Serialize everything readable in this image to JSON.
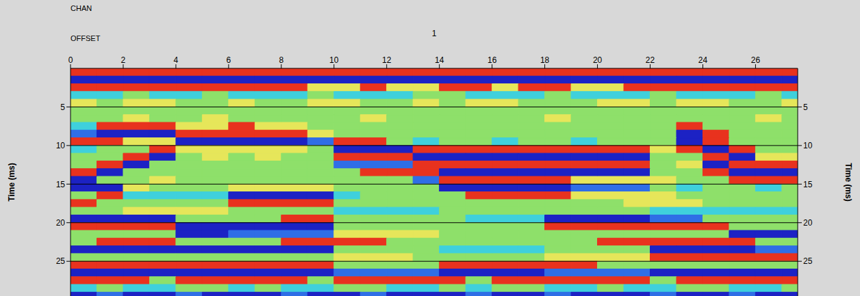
{
  "chart_data": {
    "type": "heatmap",
    "chan_label": "CHAN",
    "chan_value": 1,
    "x_label": "OFFSET",
    "y_label": "Time (ms)",
    "xlim": [
      0,
      27.6
    ],
    "ylim": [
      0,
      29.5
    ],
    "xticks": [
      0,
      2,
      4,
      6,
      8,
      10,
      12,
      14,
      16,
      18,
      20,
      22,
      24,
      26
    ],
    "yticks": [
      5,
      10,
      15,
      20,
      25
    ],
    "grid": true,
    "x_edges": [
      0,
      1,
      2,
      3,
      4,
      5,
      6,
      7,
      8,
      9,
      10,
      11,
      12,
      13,
      14,
      15,
      16,
      17,
      18,
      19,
      20,
      21,
      22,
      23,
      24,
      25,
      26,
      27,
      28
    ],
    "y_edges": [
      0,
      1,
      2,
      3,
      4,
      5,
      6,
      7,
      8,
      9,
      10,
      11,
      12,
      13,
      14,
      15,
      16,
      17,
      18,
      19,
      20,
      21,
      22,
      23,
      24,
      25,
      26,
      27,
      28,
      29,
      30
    ],
    "cells": [
      [
        2,
        2,
        2,
        2,
        2,
        2,
        2,
        2,
        2,
        2,
        2,
        2,
        2,
        2,
        2,
        2,
        2,
        2,
        2,
        2,
        2,
        2,
        2,
        2,
        2,
        2,
        2,
        2
      ],
      [
        -3,
        -3,
        -3,
        -3,
        -3,
        -3,
        -3,
        -3,
        -3,
        -3,
        -3,
        -3,
        -3,
        -3,
        -3,
        -3,
        -3,
        -3,
        -3,
        -3,
        -3,
        -3,
        -3,
        -3,
        -3,
        -3,
        -3,
        -3
      ],
      [
        2,
        2,
        2,
        2,
        2,
        2,
        2,
        2,
        2,
        1,
        1,
        2,
        1,
        1,
        2,
        2,
        1,
        2,
        2,
        1,
        1,
        2,
        2,
        2,
        2,
        2,
        2,
        2
      ],
      [
        -1,
        -1,
        0,
        -1,
        -1,
        0,
        -1,
        -1,
        -1,
        0,
        -1,
        -1,
        -1,
        0,
        0,
        -1,
        -1,
        -1,
        0,
        -1,
        -1,
        -1,
        0,
        -1,
        -1,
        -1,
        0,
        -1
      ],
      [
        1,
        0,
        1,
        1,
        0,
        0,
        1,
        0,
        0,
        1,
        1,
        0,
        0,
        1,
        0,
        1,
        1,
        0,
        0,
        0,
        1,
        1,
        0,
        1,
        1,
        0,
        0,
        1
      ],
      [
        0,
        0,
        0,
        0,
        0,
        0,
        0,
        0,
        0,
        0,
        0,
        0,
        0,
        0,
        0,
        0,
        0,
        0,
        0,
        0,
        0,
        0,
        0,
        0,
        0,
        0,
        0,
        0
      ],
      [
        0,
        0,
        1,
        0,
        0,
        1,
        0,
        0,
        0,
        0,
        0,
        1,
        0,
        0,
        0,
        0,
        0,
        0,
        1,
        0,
        0,
        0,
        0,
        0,
        0,
        0,
        1,
        0
      ],
      [
        -1,
        2,
        2,
        2,
        1,
        1,
        2,
        1,
        1,
        0,
        0,
        0,
        0,
        0,
        0,
        0,
        0,
        0,
        0,
        0,
        0,
        0,
        0,
        2,
        0,
        0,
        0,
        0
      ],
      [
        -2,
        -3,
        -3,
        -3,
        2,
        2,
        2,
        2,
        2,
        1,
        0,
        0,
        0,
        0,
        0,
        0,
        0,
        0,
        0,
        0,
        0,
        0,
        0,
        -3,
        2,
        0,
        0,
        0
      ],
      [
        2,
        2,
        1,
        1,
        -3,
        -3,
        -3,
        -3,
        -3,
        -2,
        2,
        2,
        0,
        -1,
        0,
        0,
        -1,
        0,
        0,
        -1,
        0,
        0,
        0,
        -3,
        2,
        0,
        0,
        0
      ],
      [
        -1,
        0,
        0,
        2,
        1,
        1,
        1,
        1,
        1,
        0,
        -3,
        -3,
        -3,
        2,
        2,
        2,
        2,
        2,
        2,
        2,
        2,
        2,
        1,
        2,
        -3,
        2,
        0,
        0
      ],
      [
        0,
        0,
        2,
        -3,
        0,
        1,
        0,
        1,
        0,
        0,
        2,
        2,
        2,
        -3,
        -3,
        -3,
        -3,
        -3,
        -3,
        -3,
        -3,
        -3,
        0,
        0,
        2,
        -3,
        1,
        1
      ],
      [
        0,
        2,
        -3,
        0,
        0,
        0,
        0,
        0,
        0,
        0,
        -2,
        -2,
        -2,
        2,
        2,
        2,
        2,
        2,
        2,
        2,
        2,
        2,
        0,
        1,
        -3,
        2,
        2,
        2
      ],
      [
        2,
        -3,
        0,
        0,
        0,
        0,
        0,
        0,
        0,
        0,
        0,
        2,
        2,
        2,
        -3,
        -3,
        -3,
        -3,
        -3,
        -3,
        -3,
        -3,
        0,
        0,
        2,
        -3,
        -3,
        -3
      ],
      [
        -3,
        0,
        0,
        1,
        0,
        0,
        0,
        0,
        0,
        0,
        0,
        0,
        0,
        -2,
        2,
        2,
        2,
        2,
        2,
        1,
        1,
        1,
        1,
        0,
        0,
        2,
        2,
        2
      ],
      [
        -3,
        -3,
        1,
        0,
        0,
        0,
        1,
        1,
        1,
        1,
        0,
        0,
        0,
        0,
        -3,
        -3,
        -3,
        -3,
        -3,
        -2,
        -2,
        -2,
        0,
        -1,
        0,
        0,
        -1,
        0
      ],
      [
        0,
        2,
        -1,
        -1,
        -1,
        -1,
        -3,
        -3,
        -3,
        -3,
        -1,
        0,
        0,
        0,
        0,
        2,
        2,
        2,
        2,
        1,
        1,
        1,
        1,
        0,
        0,
        0,
        0,
        0
      ],
      [
        2,
        0,
        0,
        0,
        0,
        0,
        2,
        2,
        2,
        2,
        0,
        0,
        0,
        0,
        0,
        0,
        0,
        0,
        0,
        0,
        0,
        1,
        1,
        1,
        0,
        0,
        0,
        0
      ],
      [
        0,
        0,
        1,
        1,
        1,
        1,
        0,
        0,
        0,
        0,
        -1,
        -1,
        -1,
        -1,
        0,
        0,
        0,
        0,
        0,
        0,
        0,
        0,
        -1,
        -1,
        -1,
        -1,
        -1,
        -1
      ],
      [
        -3,
        -3,
        -3,
        -3,
        0,
        0,
        0,
        0,
        2,
        2,
        0,
        0,
        0,
        0,
        0,
        -1,
        -1,
        -1,
        -3,
        -3,
        -3,
        -3,
        -2,
        -2,
        0,
        0,
        0,
        0
      ],
      [
        2,
        2,
        2,
        2,
        -3,
        -3,
        -3,
        -3,
        -3,
        -3,
        0,
        0,
        0,
        0,
        0,
        0,
        0,
        0,
        2,
        2,
        2,
        2,
        2,
        2,
        2,
        0,
        0,
        0
      ],
      [
        0,
        0,
        0,
        0,
        -3,
        -3,
        -2,
        -2,
        -2,
        -2,
        1,
        1,
        1,
        1,
        0,
        0,
        0,
        0,
        0,
        0,
        0,
        0,
        0,
        0,
        0,
        -3,
        -3,
        -3
      ],
      [
        0,
        2,
        2,
        2,
        0,
        0,
        0,
        0,
        2,
        2,
        2,
        2,
        0,
        0,
        0,
        0,
        0,
        0,
        0,
        0,
        2,
        2,
        2,
        2,
        2,
        2,
        0,
        0
      ],
      [
        -3,
        -3,
        -3,
        -3,
        -3,
        -3,
        -3,
        -3,
        -3,
        -3,
        0,
        0,
        0,
        0,
        -1,
        -1,
        -1,
        -1,
        0,
        0,
        0,
        0,
        -3,
        -3,
        -3,
        -3,
        -2,
        -2
      ],
      [
        0,
        0,
        0,
        0,
        0,
        0,
        0,
        0,
        0,
        0,
        1,
        1,
        1,
        0,
        0,
        0,
        0,
        0,
        1,
        1,
        1,
        1,
        2,
        2,
        2,
        2,
        2,
        2
      ],
      [
        2,
        2,
        2,
        2,
        2,
        2,
        2,
        2,
        2,
        2,
        0,
        0,
        0,
        0,
        2,
        2,
        2,
        2,
        2,
        2,
        0,
        0,
        0,
        0,
        0,
        0,
        0,
        0
      ],
      [
        -3,
        -3,
        -3,
        -3,
        -3,
        -3,
        -3,
        -3,
        -3,
        -3,
        -2,
        -2,
        -2,
        -2,
        -3,
        -3,
        -3,
        -3,
        -2,
        -2,
        -2,
        -2,
        -3,
        -3,
        -3,
        -3,
        -3,
        -3
      ],
      [
        2,
        2,
        2,
        0,
        2,
        2,
        2,
        2,
        2,
        0,
        2,
        2,
        2,
        2,
        2,
        0,
        2,
        2,
        2,
        2,
        2,
        2,
        0,
        2,
        2,
        2,
        2,
        2
      ],
      [
        -1,
        0,
        -1,
        -1,
        0,
        0,
        -1,
        0,
        -1,
        -1,
        0,
        0,
        -1,
        -1,
        0,
        -1,
        0,
        0,
        -1,
        -1,
        0,
        -1,
        -1,
        0,
        0,
        -1,
        -1,
        0
      ],
      [
        -3,
        -2,
        -3,
        -3,
        -2,
        -3,
        -3,
        -3,
        -2,
        -3,
        -3,
        -2,
        -3,
        -3,
        -3,
        -2,
        -3,
        -3,
        -2,
        -3,
        -3,
        -3,
        -2,
        -3,
        -3,
        -2,
        -3,
        -3
      ]
    ]
  }
}
